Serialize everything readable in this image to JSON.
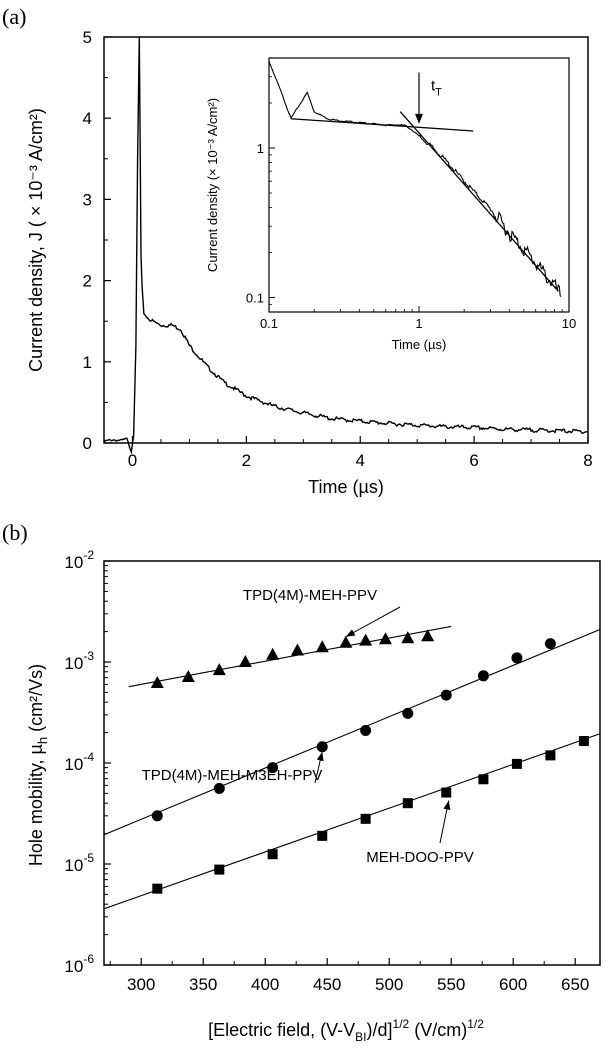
{
  "chart_data": [
    {
      "panel": "(a)",
      "type": "line",
      "xlabel": "Time (µs)",
      "ylabel": "Current density, J ( × 10⁻³ A/cm²)",
      "xlim": [
        -0.5,
        8
      ],
      "ylim": [
        0,
        5
      ],
      "xticks": [
        "0",
        "2",
        "4",
        "6",
        "8"
      ],
      "yticks": [
        "0",
        "1",
        "2",
        "3",
        "4",
        "5"
      ],
      "series": [
        {
          "x": [
            -0.5,
            -0.35,
            -0.2,
            -0.1,
            -0.02,
            0.02,
            0.06,
            0.09,
            0.12,
            0.15,
            0.17,
            0.2,
            0.25,
            0.35,
            0.5,
            0.7,
            0.85,
            1.0,
            1.3,
            1.6,
            2.0,
            2.5,
            3.0,
            3.5,
            4.0,
            4.5,
            5.0,
            5.5,
            6.0,
            6.5,
            7.0,
            7.5,
            8.0
          ],
          "y": [
            0.02,
            0.04,
            0.03,
            0.05,
            -0.1,
            0.1,
            1.2,
            3.5,
            5.0,
            2.3,
            1.9,
            1.6,
            1.55,
            1.5,
            1.45,
            1.45,
            1.4,
            1.2,
            0.95,
            0.75,
            0.58,
            0.45,
            0.37,
            0.3,
            0.27,
            0.24,
            0.22,
            0.2,
            0.19,
            0.17,
            0.16,
            0.15,
            0.14
          ]
        }
      ],
      "inset": {
        "type": "line",
        "xscale": "log",
        "yscale": "log",
        "xlabel": "Time (µs)",
        "ylabel": "Current density (× 10⁻³ A/cm²)",
        "xlim": [
          0.1,
          10
        ],
        "ylim": [
          0.08,
          4.0
        ],
        "xticks": [
          "0.1",
          "1",
          "10"
        ],
        "yticks": [
          "0.1",
          "1"
        ],
        "annotation": "tT",
        "transit_time": 1.0,
        "series": [
          {
            "x": [
              0.1,
              0.12,
              0.14,
              0.16,
              0.18,
              0.2,
              0.25,
              0.3,
              0.4,
              0.5,
              0.6,
              0.7,
              0.8,
              0.9,
              1.0,
              1.2,
              1.5,
              2.0,
              3.0,
              4.0,
              5.0,
              6.0,
              7.0,
              8.0,
              9.0
            ],
            "y": [
              3.8,
              2.4,
              1.58,
              1.95,
              2.35,
              1.75,
              1.56,
              1.52,
              1.48,
              1.45,
              1.42,
              1.43,
              1.42,
              1.32,
              1.2,
              1.03,
              0.83,
              0.6,
              0.39,
              0.27,
              0.21,
              0.17,
              0.14,
              0.12,
              0.1
            ]
          }
        ],
        "fit_lines": [
          {
            "x": [
              0.14,
              2.3
            ],
            "y": [
              1.57,
              1.3
            ]
          },
          {
            "x": [
              0.75,
              8.5
            ],
            "y": [
              1.75,
              0.11
            ]
          }
        ]
      }
    },
    {
      "panel": "(b)",
      "type": "scatter",
      "yscale": "log",
      "xlabel": "[Electric field,  (V-VBI)/d]1/2 (V/cm)1/2",
      "ylabel": "Hole mobility, µh (cm²/Vs)",
      "xlim": [
        270,
        670
      ],
      "ylim": [
        1e-06,
        0.01
      ],
      "xticks": [
        "300",
        "350",
        "400",
        "450",
        "500",
        "550",
        "600",
        "650"
      ],
      "series": [
        {
          "name": "TPD(4M)-MEH-PPV",
          "marker": "triangle",
          "x": [
            313,
            338,
            363,
            384,
            406,
            426,
            446,
            465,
            481,
            497,
            515,
            531
          ],
          "y": [
            0.00062,
            0.00071,
            0.00083,
            0.001,
            0.00118,
            0.0013,
            0.0014,
            0.00155,
            0.00163,
            0.00168,
            0.00172,
            0.0018
          ],
          "fit": {
            "x": [
              290,
              550
            ],
            "y": [
              0.00057,
              0.00225
            ]
          }
        },
        {
          "name": "TPD(4M)-MEH-M3EH-PPV",
          "marker": "circle",
          "x": [
            313,
            363,
            406,
            446,
            481,
            515,
            546,
            576,
            603,
            630
          ],
          "y": [
            3e-05,
            5.6e-05,
            9e-05,
            0.000145,
            0.00021,
            0.00031,
            0.00047,
            0.00073,
            0.0011,
            0.00152
          ],
          "fit": {
            "x": [
              270,
              670
            ],
            "y": [
              1.95e-05,
              0.0021
            ]
          }
        },
        {
          "name": "MEH-DOO-PPV",
          "marker": "square",
          "x": [
            313,
            363,
            406,
            446,
            481,
            515,
            546,
            576,
            603,
            630,
            657
          ],
          "y": [
            5.7e-06,
            8.8e-06,
            1.25e-05,
            1.9e-05,
            2.8e-05,
            4e-05,
            5.1e-05,
            6.9e-05,
            9.8e-05,
            0.000119,
            0.000165
          ],
          "fit": {
            "x": [
              270,
              670
            ],
            "y": [
              3.6e-06,
              0.000195
            ]
          }
        }
      ]
    }
  ]
}
